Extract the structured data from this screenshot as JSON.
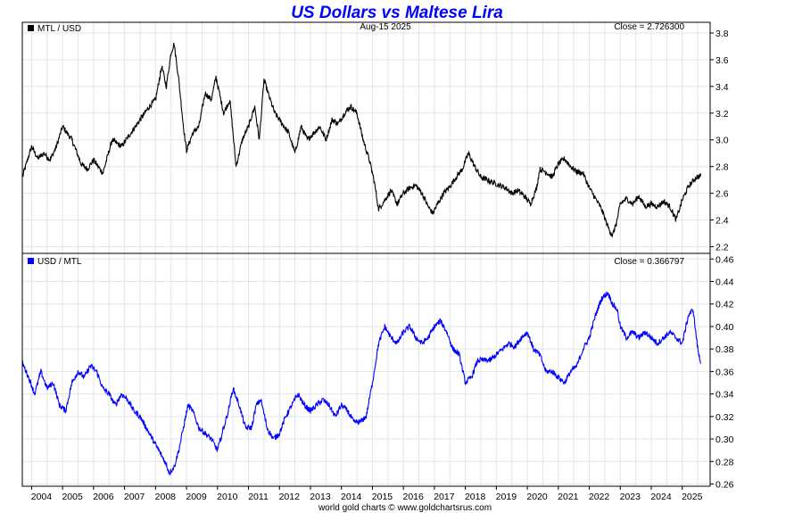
{
  "chart_data": {
    "title": "US Dollars vs Maltese Lira",
    "title_color": "#0000ff",
    "date_label": "Aug-15  2025",
    "footer": "world gold charts © www.goldchartsrus.com",
    "grid": true,
    "x_axis": {
      "range": [
        2003.7,
        2025.9
      ],
      "ticks": [
        "2004",
        "2005",
        "2006",
        "2007",
        "2008",
        "2009",
        "2010",
        "2011",
        "2012",
        "2013",
        "2014",
        "2015",
        "2016",
        "2017",
        "2018",
        "2019",
        "2020",
        "2021",
        "2022",
        "2023",
        "2024",
        "2025"
      ]
    },
    "panels": [
      {
        "type": "line",
        "legend": "MTL / USD",
        "legend_position": "top-left",
        "close_label": "Close = 2.726300",
        "color": "#000000",
        "ylim": [
          2.15,
          3.88
        ],
        "yticks": [
          "2.2",
          "2.4",
          "2.6",
          "2.8",
          "3.0",
          "3.2",
          "3.4",
          "3.6",
          "3.8"
        ],
        "series": {
          "x": [
            2003.7,
            2004.0,
            2004.2,
            2004.4,
            2004.6,
            2004.8,
            2005.0,
            2005.3,
            2005.6,
            2005.8,
            2006.0,
            2006.3,
            2006.6,
            2006.9,
            2007.2,
            2007.5,
            2007.8,
            2008.0,
            2008.2,
            2008.35,
            2008.5,
            2008.6,
            2008.75,
            2008.9,
            2009.0,
            2009.2,
            2009.4,
            2009.6,
            2009.8,
            2009.95,
            2010.2,
            2010.4,
            2010.5,
            2010.6,
            2010.8,
            2011.0,
            2011.2,
            2011.35,
            2011.5,
            2011.7,
            2011.85,
            2012.0,
            2012.3,
            2012.5,
            2012.7,
            2012.9,
            2013.1,
            2013.3,
            2013.5,
            2013.7,
            2013.9,
            2014.1,
            2014.3,
            2014.5,
            2014.7,
            2014.9,
            2015.05,
            2015.2,
            2015.4,
            2015.6,
            2015.8,
            2016.0,
            2016.2,
            2016.4,
            2016.6,
            2016.8,
            2016.95,
            2017.1,
            2017.3,
            2017.5,
            2017.7,
            2017.9,
            2018.1,
            2018.3,
            2018.5,
            2018.7,
            2018.9,
            2019.1,
            2019.3,
            2019.5,
            2019.7,
            2019.9,
            2020.1,
            2020.3,
            2020.4,
            2020.6,
            2020.8,
            2021.0,
            2021.2,
            2021.4,
            2021.6,
            2021.8,
            2022.0,
            2022.2,
            2022.4,
            2022.6,
            2022.75,
            2022.9,
            2023.0,
            2023.2,
            2023.4,
            2023.6,
            2023.8,
            2024.0,
            2024.2,
            2024.4,
            2024.6,
            2024.8,
            2025.0,
            2025.2,
            2025.45,
            2025.6
          ],
          "y": [
            2.72,
            2.95,
            2.86,
            2.9,
            2.85,
            2.95,
            3.1,
            3.0,
            2.82,
            2.78,
            2.85,
            2.75,
            3.0,
            2.95,
            3.05,
            3.15,
            3.25,
            3.3,
            3.55,
            3.4,
            3.65,
            3.72,
            3.45,
            3.1,
            2.92,
            3.05,
            3.1,
            3.35,
            3.3,
            3.47,
            3.2,
            3.3,
            3.05,
            2.8,
            3.0,
            3.1,
            3.25,
            3.0,
            3.45,
            3.3,
            3.2,
            3.15,
            3.05,
            2.9,
            3.1,
            3.0,
            3.05,
            3.1,
            3.0,
            3.15,
            3.12,
            3.2,
            3.25,
            3.2,
            3.0,
            2.85,
            2.7,
            2.48,
            2.55,
            2.62,
            2.52,
            2.6,
            2.64,
            2.66,
            2.6,
            2.5,
            2.45,
            2.52,
            2.6,
            2.65,
            2.72,
            2.78,
            2.9,
            2.8,
            2.72,
            2.7,
            2.68,
            2.66,
            2.64,
            2.6,
            2.62,
            2.58,
            2.52,
            2.64,
            2.78,
            2.76,
            2.72,
            2.82,
            2.86,
            2.8,
            2.76,
            2.75,
            2.64,
            2.56,
            2.48,
            2.35,
            2.28,
            2.4,
            2.52,
            2.56,
            2.52,
            2.58,
            2.5,
            2.52,
            2.5,
            2.54,
            2.5,
            2.4,
            2.55,
            2.65,
            2.72,
            2.73
          ]
        }
      },
      {
        "type": "line",
        "legend": "USD / MTL",
        "legend_position": "top-left",
        "close_label": "Close = 0.366797",
        "color": "#0000ff",
        "ylim": [
          0.258,
          0.465
        ],
        "yticks": [
          "0.26",
          "0.28",
          "0.30",
          "0.32",
          "0.34",
          "0.36",
          "0.38",
          "0.40",
          "0.42",
          "0.44",
          "0.46"
        ],
        "series": {
          "x": [
            2003.7,
            2003.9,
            2004.1,
            2004.3,
            2004.5,
            2004.7,
            2004.9,
            2005.1,
            2005.3,
            2005.5,
            2005.7,
            2005.9,
            2006.1,
            2006.3,
            2006.5,
            2006.7,
            2006.9,
            2007.1,
            2007.3,
            2007.5,
            2007.7,
            2007.9,
            2008.1,
            2008.3,
            2008.45,
            2008.6,
            2008.75,
            2008.9,
            2009.05,
            2009.2,
            2009.4,
            2009.6,
            2009.8,
            2010.0,
            2010.2,
            2010.35,
            2010.5,
            2010.7,
            2010.9,
            2011.1,
            2011.25,
            2011.4,
            2011.6,
            2011.8,
            2012.0,
            2012.2,
            2012.4,
            2012.6,
            2012.8,
            2013.0,
            2013.2,
            2013.4,
            2013.6,
            2013.8,
            2014.0,
            2014.2,
            2014.4,
            2014.6,
            2014.8,
            2015.0,
            2015.2,
            2015.4,
            2015.6,
            2015.8,
            2016.0,
            2016.2,
            2016.4,
            2016.6,
            2016.8,
            2017.0,
            2017.2,
            2017.4,
            2017.6,
            2017.8,
            2018.0,
            2018.2,
            2018.4,
            2018.6,
            2018.8,
            2019.0,
            2019.2,
            2019.4,
            2019.6,
            2019.8,
            2020.0,
            2020.2,
            2020.4,
            2020.6,
            2020.8,
            2021.0,
            2021.2,
            2021.4,
            2021.6,
            2021.8,
            2022.0,
            2022.2,
            2022.4,
            2022.6,
            2022.75,
            2022.9,
            2023.0,
            2023.2,
            2023.4,
            2023.6,
            2023.8,
            2024.0,
            2024.2,
            2024.4,
            2024.6,
            2024.8,
            2025.0,
            2025.2,
            2025.35,
            2025.5,
            2025.6
          ],
          "y": [
            0.368,
            0.355,
            0.34,
            0.36,
            0.345,
            0.35,
            0.33,
            0.325,
            0.35,
            0.36,
            0.355,
            0.365,
            0.36,
            0.345,
            0.34,
            0.33,
            0.34,
            0.335,
            0.325,
            0.32,
            0.31,
            0.3,
            0.29,
            0.28,
            0.27,
            0.275,
            0.29,
            0.31,
            0.33,
            0.325,
            0.31,
            0.305,
            0.3,
            0.29,
            0.31,
            0.325,
            0.345,
            0.33,
            0.31,
            0.31,
            0.33,
            0.335,
            0.31,
            0.3,
            0.305,
            0.32,
            0.33,
            0.34,
            0.33,
            0.325,
            0.33,
            0.335,
            0.33,
            0.32,
            0.33,
            0.325,
            0.315,
            0.315,
            0.32,
            0.35,
            0.385,
            0.4,
            0.39,
            0.385,
            0.395,
            0.4,
            0.39,
            0.385,
            0.39,
            0.4,
            0.405,
            0.395,
            0.38,
            0.375,
            0.35,
            0.355,
            0.37,
            0.37,
            0.37,
            0.375,
            0.38,
            0.385,
            0.382,
            0.39,
            0.395,
            0.38,
            0.375,
            0.36,
            0.36,
            0.355,
            0.35,
            0.36,
            0.365,
            0.38,
            0.39,
            0.41,
            0.425,
            0.43,
            0.42,
            0.415,
            0.4,
            0.39,
            0.395,
            0.39,
            0.395,
            0.39,
            0.385,
            0.39,
            0.395,
            0.39,
            0.385,
            0.41,
            0.415,
            0.38,
            0.367
          ]
        }
      }
    ]
  }
}
